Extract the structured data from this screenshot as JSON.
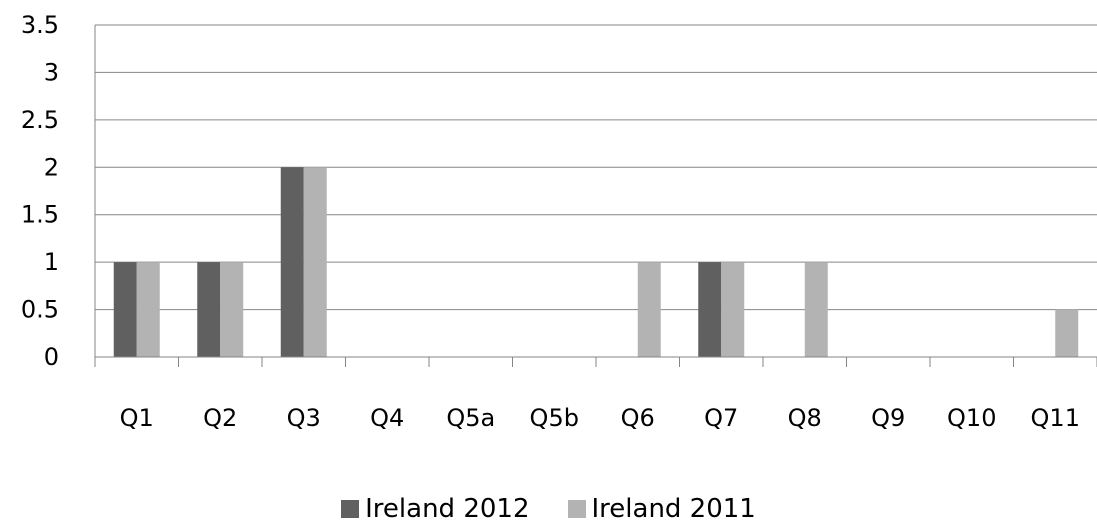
{
  "chart_data": {
    "type": "bar",
    "categories": [
      "Q1",
      "Q2",
      "Q3",
      "Q4",
      "Q5a",
      "Q5b",
      "Q6",
      "Q7",
      "Q8",
      "Q9",
      "Q10",
      "Q11"
    ],
    "series": [
      {
        "name": "Ireland 2012",
        "color": "#606060",
        "values": [
          1,
          1,
          2,
          0,
          0,
          0,
          0,
          1,
          0,
          0,
          0,
          0
        ]
      },
      {
        "name": "Ireland 2011",
        "color": "#b3b3b3",
        "values": [
          1,
          1,
          2,
          0,
          0,
          0,
          1,
          1,
          1,
          0,
          0,
          0.5
        ]
      }
    ],
    "ylim": [
      0,
      3.5
    ],
    "yticks": [
      "0",
      "0.5",
      "1",
      "1.5",
      "2",
      "2.5",
      "3",
      "3.5"
    ],
    "grid": true,
    "legend_position": "bottom",
    "title": "",
    "xlabel": "",
    "ylabel": ""
  }
}
